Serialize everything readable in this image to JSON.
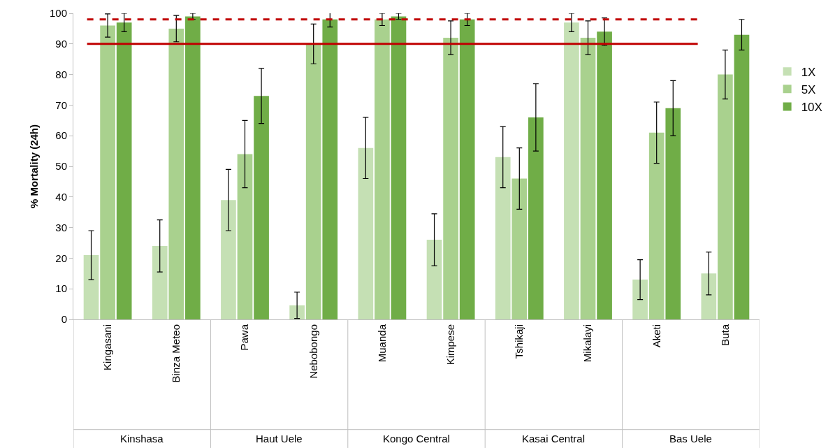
{
  "chart_data": {
    "type": "bar",
    "ylabel": "% Mortality (24h)",
    "categories": [
      "Kingasani",
      "Binza Meteo",
      "Pawa",
      "Nebobongo",
      "Muanda",
      "Kimpese",
      "Tshikaji",
      "Mikalayi",
      "Aketi",
      "Buta"
    ],
    "series": [
      {
        "name": "1X",
        "color": "#c5e0b4",
        "values": [
          21,
          24,
          39,
          4.6,
          56,
          26,
          53,
          97,
          13,
          15
        ],
        "errors": [
          8,
          8.5,
          10,
          4.3,
          10,
          8.5,
          10,
          3,
          6.5,
          7
        ]
      },
      {
        "name": "5X",
        "color": "#a9d18e",
        "values": [
          96,
          95,
          54,
          90,
          98,
          92,
          46,
          92,
          61,
          80
        ],
        "errors": [
          3.8,
          4.3,
          11,
          6.5,
          2,
          5.5,
          10,
          5.5,
          10,
          8
        ]
      },
      {
        "name": "10X",
        "color": "#70ad47",
        "values": [
          97,
          99,
          73,
          98,
          99,
          98,
          66,
          94,
          69,
          93
        ],
        "errors": [
          3,
          1,
          9,
          2.5,
          1,
          2,
          11,
          4.5,
          9,
          5
        ]
      }
    ],
    "annotations": [
      "Kinshasa",
      "Haut Uele",
      "Kongo Central",
      "Kasai Central",
      "Bas Uele"
    ],
    "ylim": [
      0,
      100
    ],
    "yticks": [
      0,
      10,
      20,
      30,
      40,
      50,
      60,
      70,
      80,
      90,
      100
    ],
    "ref_lines": [
      {
        "axis": "y",
        "value": 98,
        "color": "#c00000",
        "line_style": "dashed"
      },
      {
        "axis": "y",
        "value": 90,
        "color": "#c00000",
        "line_style": "solid"
      }
    ],
    "grid": false,
    "legend": "right"
  }
}
